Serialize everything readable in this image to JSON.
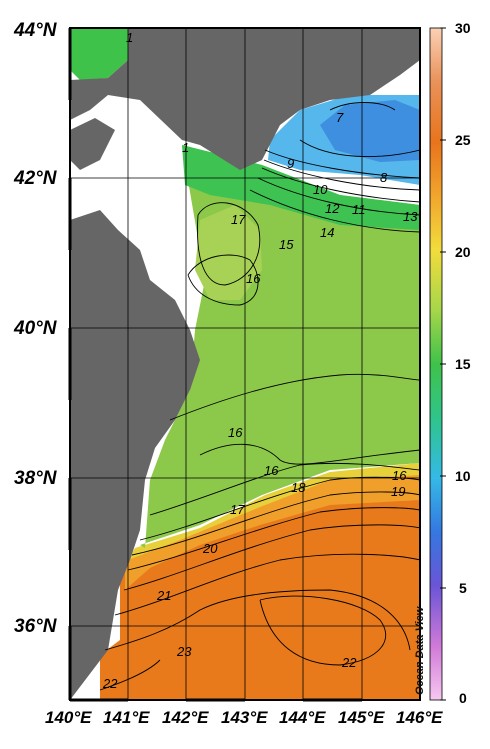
{
  "map": {
    "lat_labels": [
      "44°N",
      "42°N",
      "40°N",
      "38°N",
      "36°N"
    ],
    "lon_labels": [
      "140°E",
      "141°E",
      "142°E",
      "143°E",
      "144°E",
      "145°E",
      "146°E"
    ],
    "contour_labels": [
      "1",
      "7",
      "8",
      "9",
      "10",
      "11",
      "12",
      "13",
      "14",
      "15",
      "16",
      "17",
      "16",
      "16",
      "16",
      "18",
      "17",
      "19",
      "20",
      "21",
      "23",
      "22",
      "22",
      "1"
    ],
    "colorbar": {
      "ticks": [
        "30",
        "25",
        "20",
        "15",
        "10",
        "5",
        "0"
      ],
      "min": 0,
      "max": 30
    },
    "watermark": "Ocean Data View",
    "colors": {
      "land": "#666666",
      "grid": "#000000",
      "cold": "#4aa9e8",
      "mid": "#7dc84a",
      "warm": "#e97a17"
    }
  }
}
